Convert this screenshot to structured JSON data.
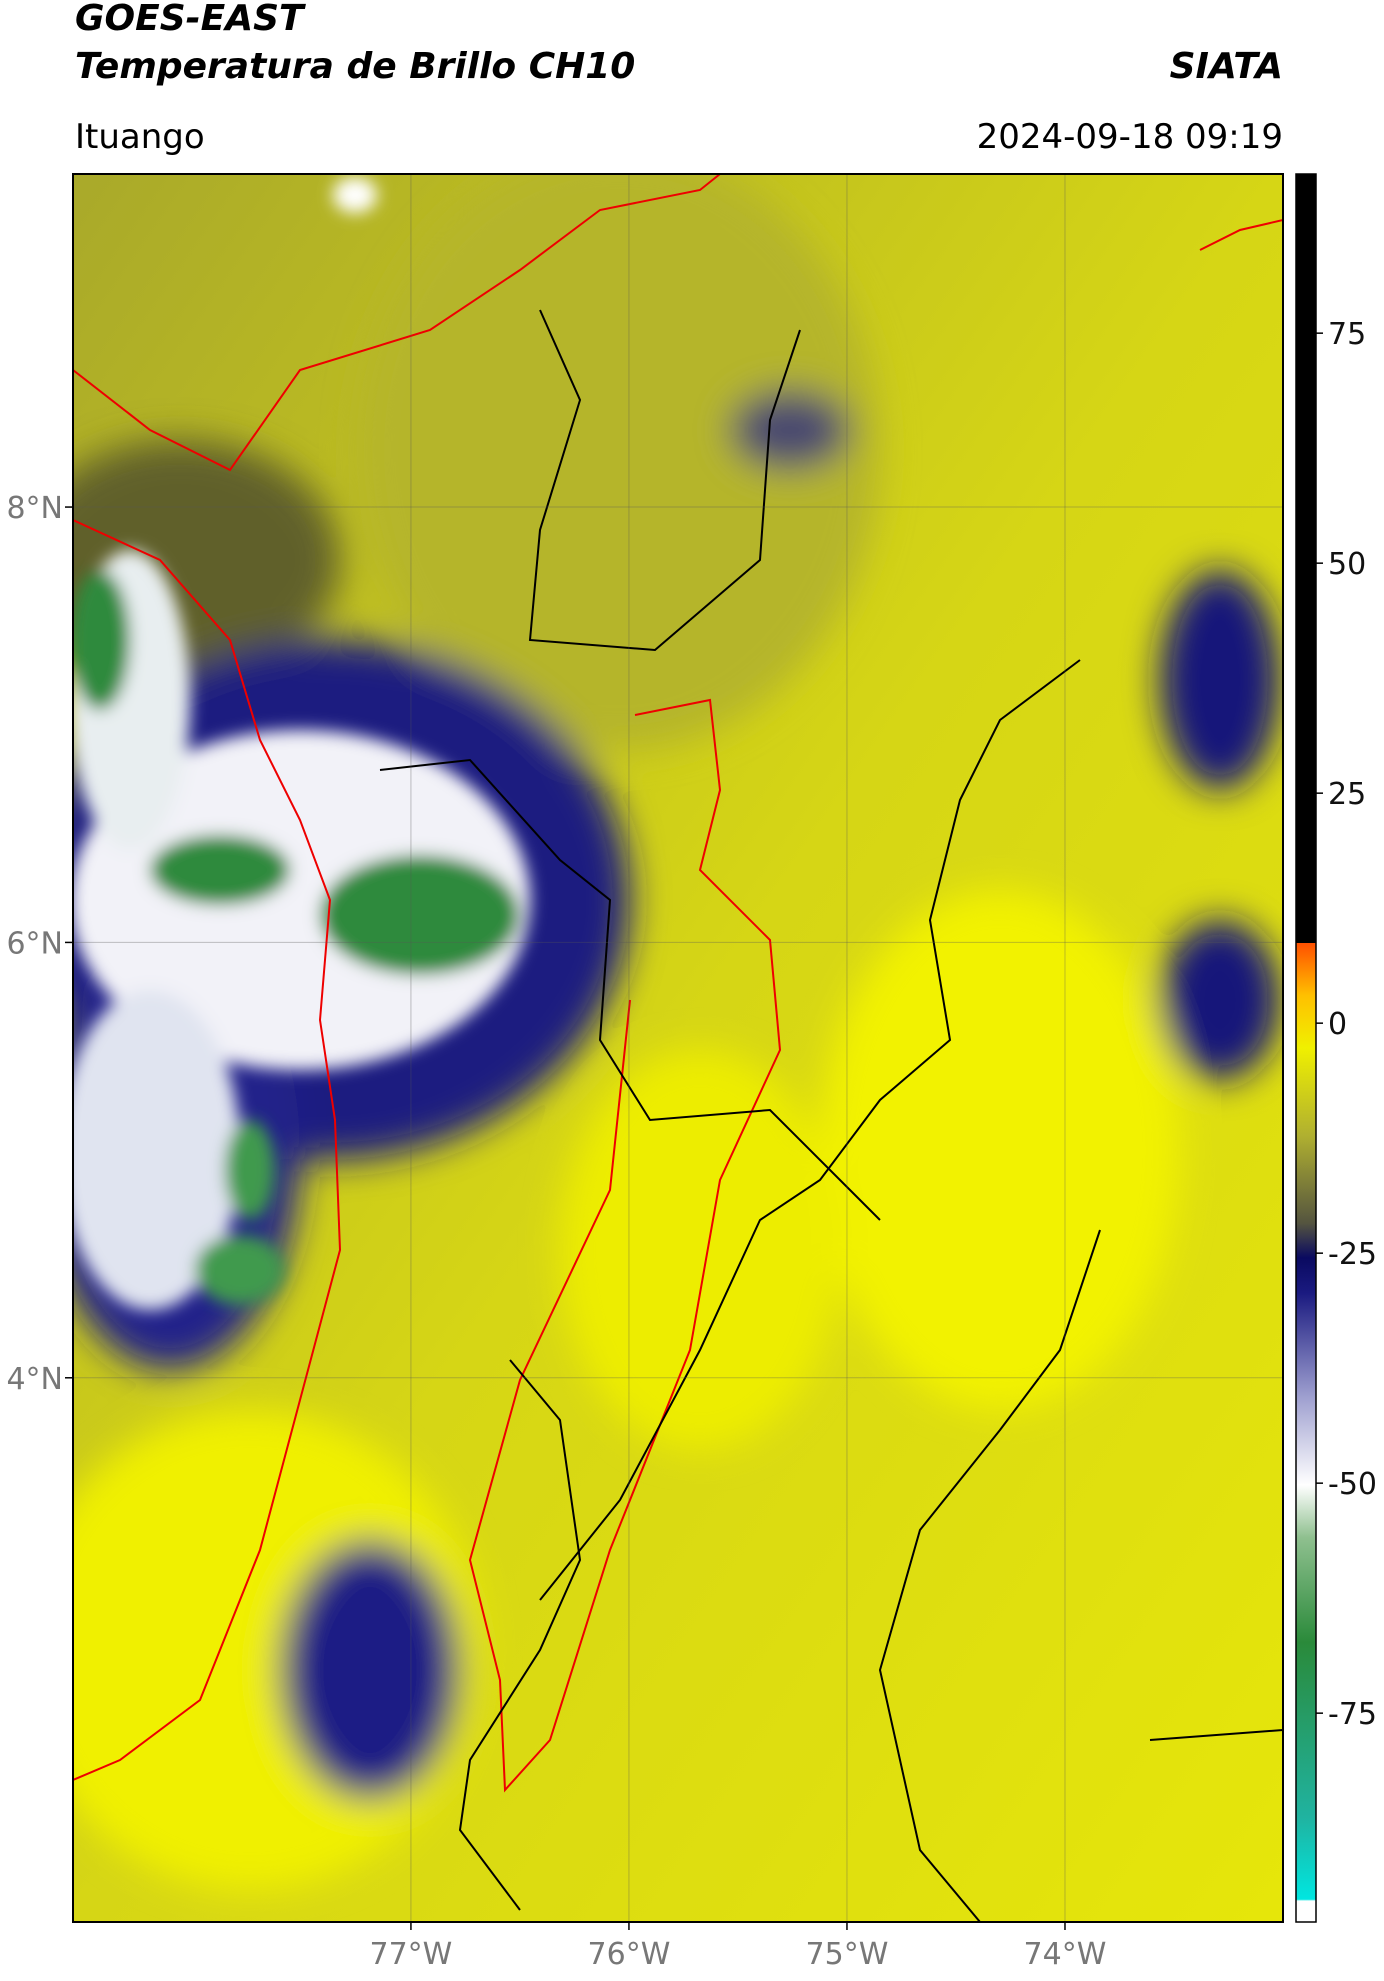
{
  "header": {
    "title_line1": "GOES-EAST",
    "title_line2": "Temperatura de Brillo CH10",
    "source": "SIATA",
    "location": "Ituango",
    "datetime": "2024-09-18 09:19"
  },
  "map": {
    "lonlim": [
      -78.55,
      -73.0
    ],
    "latlim": [
      1.5,
      9.53
    ],
    "lon_ticks": [
      {
        "value": -77,
        "label": "77°W"
      },
      {
        "value": -76,
        "label": "76°W"
      },
      {
        "value": -75,
        "label": "75°W"
      },
      {
        "value": -74,
        "label": "74°W"
      }
    ],
    "lat_ticks": [
      {
        "value": 8,
        "label": "8°N"
      },
      {
        "value": 6,
        "label": "6°N"
      },
      {
        "value": 4,
        "label": "4°N"
      }
    ]
  },
  "colorbar": {
    "lim": [
      -97.7,
      92.3
    ],
    "ticks": [
      75,
      50,
      25,
      0,
      -25,
      -50,
      -75
    ]
  }
}
